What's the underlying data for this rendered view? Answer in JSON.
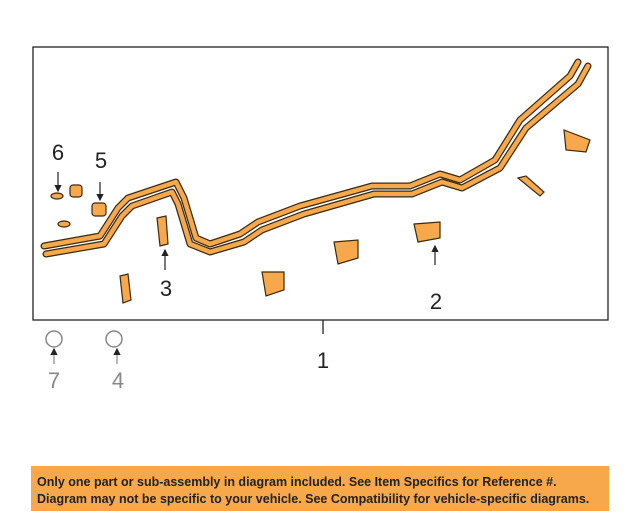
{
  "callouts": [
    "1",
    "2",
    "3",
    "4",
    "5",
    "6",
    "7"
  ],
  "notice": {
    "line1": "Only one part or sub-assembly in diagram included. See Item Specifics for Reference #.",
    "line2": "Diagram may not be specific to your vehicle. See Compatibility for vehicle-specific diagrams."
  }
}
